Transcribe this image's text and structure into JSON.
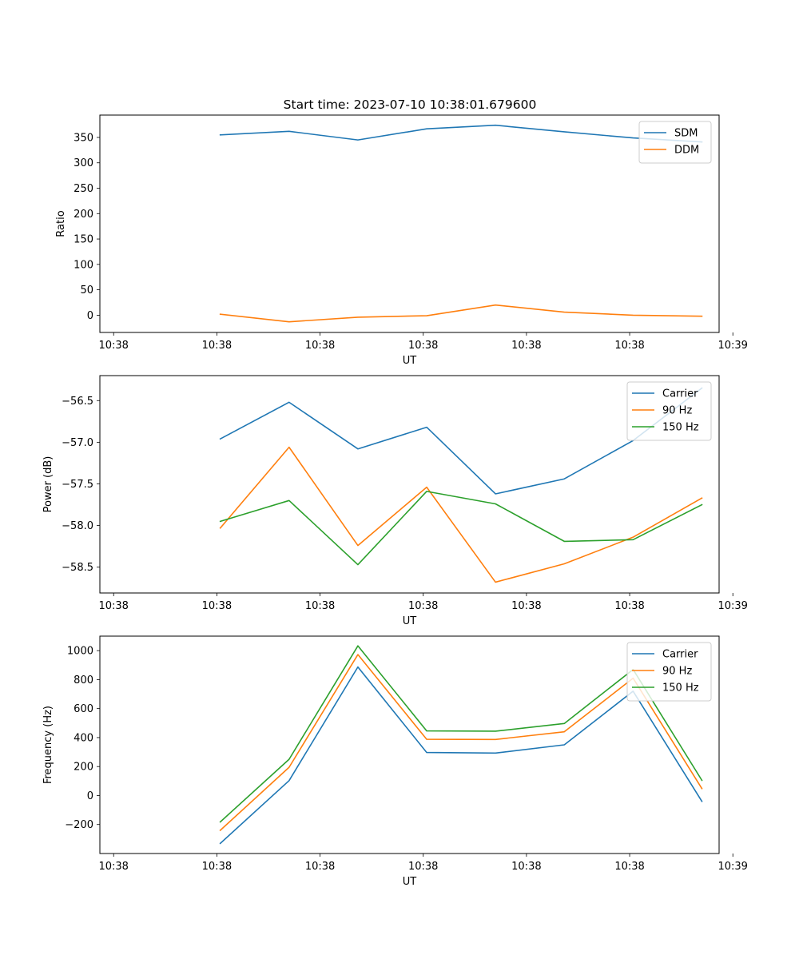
{
  "title": "Start time: 2023-07-10 10:38:01.679600",
  "colors": {
    "blue": "#1f77b4",
    "orange": "#ff7f0e",
    "green": "#2ca02c"
  },
  "chart_data": [
    {
      "type": "line",
      "title": "Start time: 2023-07-10 10:38:01.679600",
      "xlabel": "UT",
      "ylabel": "Ratio",
      "xlim": [
        -1,
        8
      ],
      "ylim": [
        -34,
        394
      ],
      "x": [
        0.75,
        1.75,
        2.75,
        3.75,
        4.75,
        5.75,
        6.75,
        7.75
      ],
      "x_ticks": [
        -0.8,
        0.7,
        2.2,
        3.7,
        5.2,
        6.7,
        8.2
      ],
      "x_tick_labels": [
        "10:38",
        "10:38",
        "10:38",
        "10:38",
        "10:38",
        "10:38",
        "10:39"
      ],
      "y_ticks": [
        0,
        50,
        100,
        150,
        200,
        250,
        300,
        350
      ],
      "y_tick_labels": [
        "0",
        "50",
        "100",
        "150",
        "200",
        "250",
        "300",
        "350"
      ],
      "legend": "top-right",
      "series": [
        {
          "name": "SDM",
          "color": "#1f77b4",
          "values": [
            355,
            362,
            345,
            367,
            374,
            361,
            349,
            341
          ]
        },
        {
          "name": "DDM",
          "color": "#ff7f0e",
          "values": [
            2,
            -13,
            -4,
            -1,
            20,
            6,
            0,
            -2
          ]
        }
      ]
    },
    {
      "type": "line",
      "title": "",
      "xlabel": "UT",
      "ylabel": "Power (dB)",
      "xlim": [
        -1,
        8
      ],
      "ylim": [
        -58.81,
        -56.2
      ],
      "x": [
        0.75,
        1.75,
        2.75,
        3.75,
        4.75,
        5.75,
        6.75,
        7.75
      ],
      "x_ticks": [
        -0.8,
        0.7,
        2.2,
        3.7,
        5.2,
        6.7,
        8.2
      ],
      "x_tick_labels": [
        "10:38",
        "10:38",
        "10:38",
        "10:38",
        "10:38",
        "10:38",
        "10:39"
      ],
      "y_ticks": [
        -58.5,
        -58.0,
        -57.5,
        -57.0,
        -56.5
      ],
      "y_tick_labels": [
        "−58.5",
        "−58.0",
        "−57.5",
        "−57.0",
        "−56.5"
      ],
      "legend": "top-right",
      "series": [
        {
          "name": "Carrier",
          "color": "#1f77b4",
          "values": [
            -56.96,
            -56.52,
            -57.08,
            -56.82,
            -57.62,
            -57.44,
            -56.98,
            -56.35
          ]
        },
        {
          "name": "90 Hz",
          "color": "#ff7f0e",
          "values": [
            -58.03,
            -57.06,
            -58.24,
            -57.54,
            -58.68,
            -58.46,
            -58.14,
            -57.67
          ]
        },
        {
          "name": "150 Hz",
          "color": "#2ca02c",
          "values": [
            -57.95,
            -57.7,
            -58.47,
            -57.59,
            -57.74,
            -58.19,
            -58.17,
            -57.75
          ]
        }
      ]
    },
    {
      "type": "line",
      "title": "",
      "xlabel": "UT",
      "ylabel": "Frequency (Hz)",
      "xlim": [
        -1,
        8
      ],
      "ylim": [
        -400,
        1100
      ],
      "x": [
        0.75,
        1.75,
        2.75,
        3.75,
        4.75,
        5.75,
        6.75,
        7.75
      ],
      "x_ticks": [
        -0.8,
        0.7,
        2.2,
        3.7,
        5.2,
        6.7,
        8.2
      ],
      "x_tick_labels": [
        "10:38",
        "10:38",
        "10:38",
        "10:38",
        "10:38",
        "10:38",
        "10:39"
      ],
      "y_ticks": [
        -200,
        0,
        200,
        400,
        600,
        800,
        1000
      ],
      "y_tick_labels": [
        "−200",
        "0",
        "200",
        "400",
        "600",
        "800",
        "1000"
      ],
      "legend": "top-right",
      "series": [
        {
          "name": "Carrier",
          "color": "#1f77b4",
          "values": [
            -330,
            103,
            887,
            297,
            293,
            350,
            720,
            -40
          ]
        },
        {
          "name": "90 Hz",
          "color": "#ff7f0e",
          "values": [
            -240,
            195,
            973,
            388,
            387,
            440,
            810,
            48
          ]
        },
        {
          "name": "150 Hz",
          "color": "#2ca02c",
          "values": [
            -182,
            250,
            1033,
            446,
            444,
            497,
            870,
            105
          ]
        }
      ]
    }
  ]
}
